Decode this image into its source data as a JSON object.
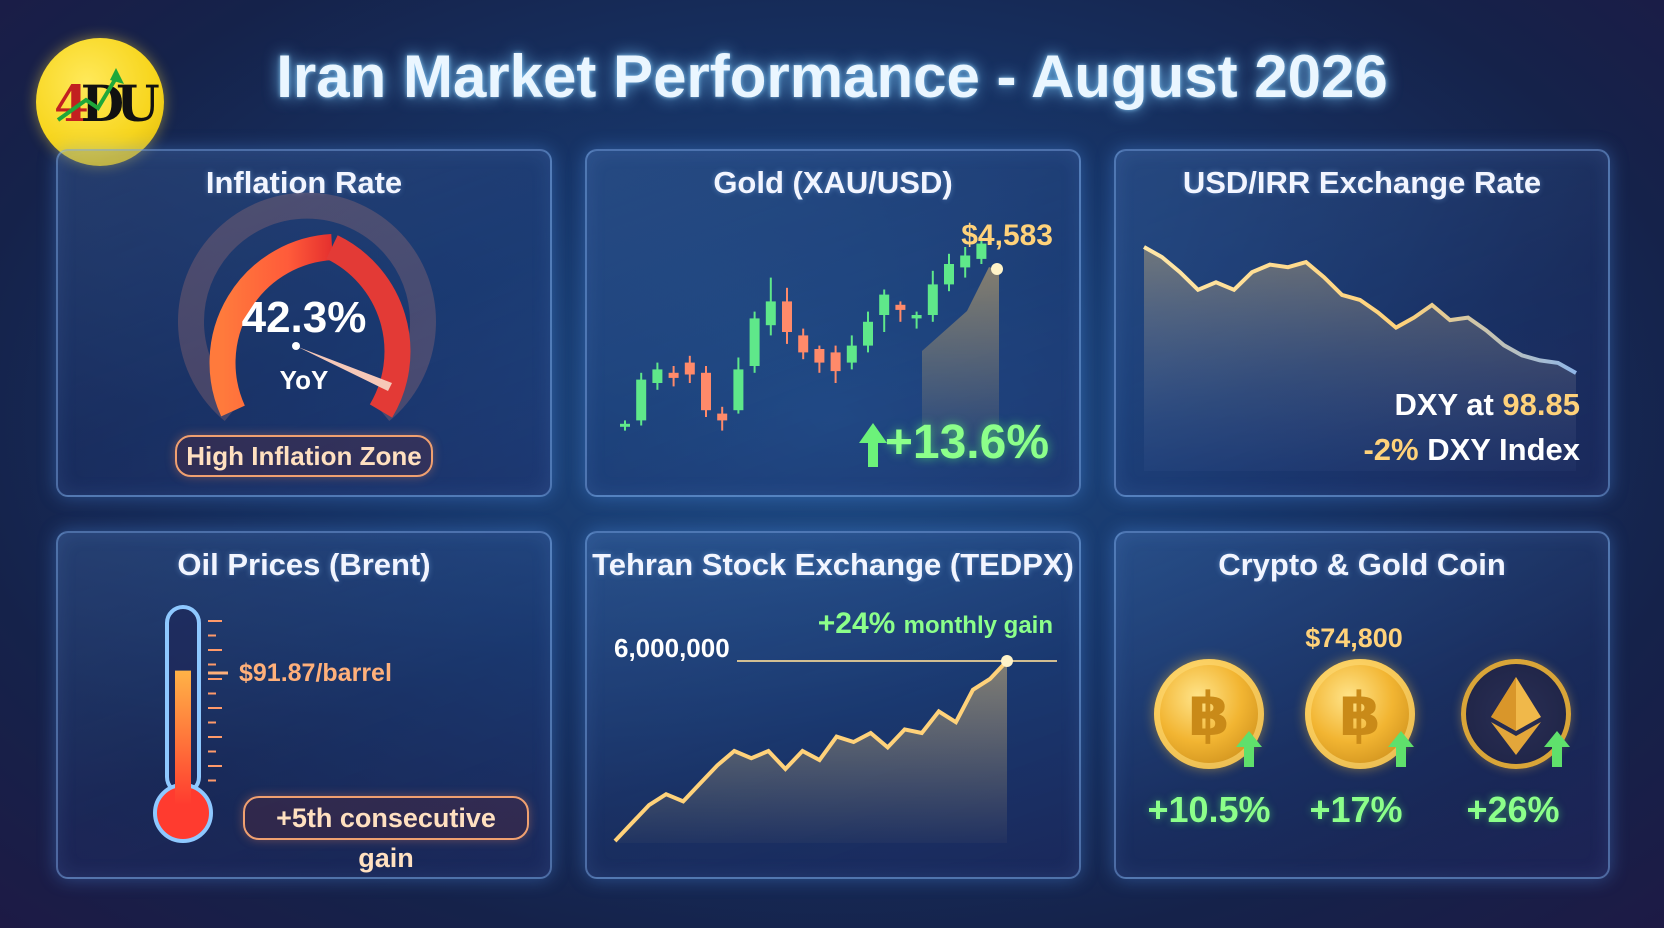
{
  "header": {
    "title": "Iran Market Performance - August 2026",
    "logo_letters": "4DU"
  },
  "colors": {
    "background": "#173568",
    "panel_border": "#8cbeff",
    "gain_green": "#8cff8a",
    "gold": "#ffd27a",
    "danger_red": "#e53b34"
  },
  "chart_data": [
    {
      "type": "gauge",
      "title": "Inflation Rate",
      "value_label": "42.3%",
      "value": 42.3,
      "unit_label": "YoY",
      "zone_label": "High Inflation Zone"
    },
    {
      "type": "candlestick",
      "title": "Gold (XAU/USD)",
      "last_price_label": "$4,583",
      "change_label": "+13.6%",
      "candles": [
        {
          "o": 0.05,
          "c": 0.06,
          "h": 0.08,
          "l": 0.02,
          "up": true
        },
        {
          "o": 0.08,
          "c": 0.32,
          "h": 0.36,
          "l": 0.05,
          "up": true
        },
        {
          "o": 0.3,
          "c": 0.38,
          "h": 0.42,
          "l": 0.26,
          "up": true
        },
        {
          "o": 0.36,
          "c": 0.33,
          "h": 0.4,
          "l": 0.28,
          "up": false
        },
        {
          "o": 0.42,
          "c": 0.35,
          "h": 0.46,
          "l": 0.3,
          "up": false
        },
        {
          "o": 0.36,
          "c": 0.14,
          "h": 0.4,
          "l": 0.1,
          "up": false
        },
        {
          "o": 0.12,
          "c": 0.08,
          "h": 0.16,
          "l": 0.02,
          "up": false
        },
        {
          "o": 0.14,
          "c": 0.38,
          "h": 0.45,
          "l": 0.12,
          "up": true
        },
        {
          "o": 0.4,
          "c": 0.68,
          "h": 0.72,
          "l": 0.36,
          "up": true
        },
        {
          "o": 0.64,
          "c": 0.78,
          "h": 0.92,
          "l": 0.58,
          "up": true
        },
        {
          "o": 0.78,
          "c": 0.6,
          "h": 0.86,
          "l": 0.53,
          "up": false
        },
        {
          "o": 0.58,
          "c": 0.48,
          "h": 0.62,
          "l": 0.44,
          "up": false
        },
        {
          "o": 0.5,
          "c": 0.42,
          "h": 0.52,
          "l": 0.36,
          "up": false
        },
        {
          "o": 0.48,
          "c": 0.37,
          "h": 0.52,
          "l": 0.3,
          "up": false
        },
        {
          "o": 0.42,
          "c": 0.52,
          "h": 0.58,
          "l": 0.38,
          "up": true
        },
        {
          "o": 0.52,
          "c": 0.66,
          "h": 0.72,
          "l": 0.48,
          "up": true
        },
        {
          "o": 0.7,
          "c": 0.82,
          "h": 0.85,
          "l": 0.6,
          "up": true
        },
        {
          "o": 0.76,
          "c": 0.73,
          "h": 0.78,
          "l": 0.66,
          "up": false
        },
        {
          "o": 0.68,
          "c": 0.7,
          "h": 0.72,
          "l": 0.62,
          "up": true
        },
        {
          "o": 0.7,
          "c": 0.88,
          "h": 0.96,
          "l": 0.66,
          "up": true
        },
        {
          "o": 0.88,
          "c": 1.0,
          "h": 1.06,
          "l": 0.84,
          "up": true
        },
        {
          "o": 0.98,
          "c": 1.05,
          "h": 1.1,
          "l": 0.92,
          "up": true
        },
        {
          "o": 1.03,
          "c": 1.12,
          "h": 1.14,
          "l": 1.0,
          "up": true
        }
      ]
    },
    {
      "type": "area",
      "title": "USD/IRR Exchange Rate",
      "values": [
        1.0,
        0.92,
        0.8,
        0.66,
        0.72,
        0.66,
        0.8,
        0.86,
        0.84,
        0.88,
        0.76,
        0.62,
        0.58,
        0.48,
        0.36,
        0.44,
        0.54,
        0.42,
        0.44,
        0.34,
        0.22,
        0.14,
        0.1,
        0.08,
        0.0
      ],
      "dxy_label": "DXY at",
      "dxy_value": "98.85",
      "dxy_change": "-2%",
      "dxy_change_label": "DXY Index"
    },
    {
      "type": "thermometer",
      "title": "Oil Prices (Brent)",
      "level": 0.7,
      "price_label": "$91.87/barrel",
      "note": "+5th consecutive gain"
    },
    {
      "type": "area",
      "title": "Tehran Stock Exchange (TEDPX)",
      "values": [
        0.0,
        0.1,
        0.2,
        0.26,
        0.22,
        0.32,
        0.42,
        0.5,
        0.46,
        0.5,
        0.4,
        0.5,
        0.45,
        0.58,
        0.55,
        0.6,
        0.52,
        0.62,
        0.6,
        0.72,
        0.66,
        0.84,
        0.9,
        1.0
      ],
      "reference_label": "6,000,000",
      "gain_value": "+24%",
      "gain_label": "monthly gain"
    },
    {
      "type": "icons",
      "title": "Crypto & Gold Coin",
      "price_label": "$74,800",
      "items": [
        {
          "icon": "bitcoin-coin-icon",
          "change": "+10.5%"
        },
        {
          "icon": "bitcoin-coin-icon",
          "change": "+17%"
        },
        {
          "icon": "ethereum-coin-icon",
          "change": "+26%"
        }
      ]
    }
  ]
}
